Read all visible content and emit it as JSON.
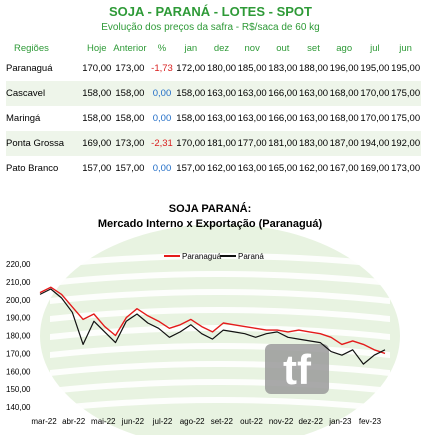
{
  "header": {
    "title": "SOJA - PARANÁ - LOTES - SPOT",
    "subtitle": "Evolução dos preços da safra - R$/saca de 60 kg"
  },
  "table": {
    "columns": [
      "Regiões",
      "Hoje",
      "Anterior",
      "%",
      "jan",
      "dez",
      "nov",
      "out",
      "set",
      "ago",
      "jul",
      "jun"
    ],
    "rows": [
      [
        "Paranaguá",
        "170,00",
        "173,00",
        "-1,73",
        "172,00",
        "180,00",
        "185,00",
        "183,00",
        "188,00",
        "196,00",
        "195,00",
        "195,00"
      ],
      [
        "Cascavel",
        "158,00",
        "158,00",
        "0,00",
        "158,00",
        "163,00",
        "163,00",
        "166,00",
        "163,00",
        "168,00",
        "170,00",
        "175,00"
      ],
      [
        "Maringá",
        "158,00",
        "158,00",
        "0,00",
        "158,00",
        "163,00",
        "163,00",
        "166,00",
        "163,00",
        "168,00",
        "170,00",
        "175,00"
      ],
      [
        "Ponta Grossa",
        "169,00",
        "173,00",
        "-2,31",
        "170,00",
        "181,00",
        "177,00",
        "181,00",
        "183,00",
        "187,00",
        "194,00",
        "192,00"
      ],
      [
        "Pato Branco",
        "157,00",
        "157,00",
        "0,00",
        "157,00",
        "162,00",
        "163,00",
        "165,00",
        "162,00",
        "167,00",
        "169,00",
        "173,00"
      ]
    ]
  },
  "chart_data": {
    "type": "line",
    "title": "SOJA PARANÁ:",
    "subtitle": "Mercado Interno x Exportação (Paranaguá)",
    "x_ticks": [
      "mar-22",
      "abr-22",
      "mai-22",
      "jun-22",
      "jul-22",
      "ago-22",
      "set-22",
      "out-22",
      "nov-22",
      "dez-22",
      "jan-23",
      "fev-23"
    ],
    "y_ticks": [
      "220,00",
      "210,00",
      "200,00",
      "190,00",
      "180,00",
      "170,00",
      "160,00",
      "150,00",
      "140,00"
    ],
    "ylim": [
      140,
      220
    ],
    "legend_position": "top-center",
    "grid": false,
    "series": [
      {
        "name": "Paranaguá",
        "color": "#e41b1b",
        "values": [
          204,
          207,
          203,
          196,
          189,
          192,
          185,
          180,
          190,
          195,
          191,
          188,
          184,
          186,
          189,
          185,
          182,
          187,
          186,
          185,
          184,
          183,
          183,
          182,
          183,
          182,
          181,
          179,
          175,
          177,
          175,
          172,
          170
        ]
      },
      {
        "name": "Paraná",
        "color": "#111111",
        "values": [
          203,
          206,
          201,
          193,
          175,
          188,
          182,
          176,
          188,
          192,
          187,
          184,
          179,
          182,
          186,
          181,
          178,
          183,
          182,
          181,
          179,
          181,
          182,
          179,
          178,
          177,
          176,
          171,
          169,
          172,
          164,
          169,
          172
        ]
      }
    ],
    "watermark": "tf"
  }
}
